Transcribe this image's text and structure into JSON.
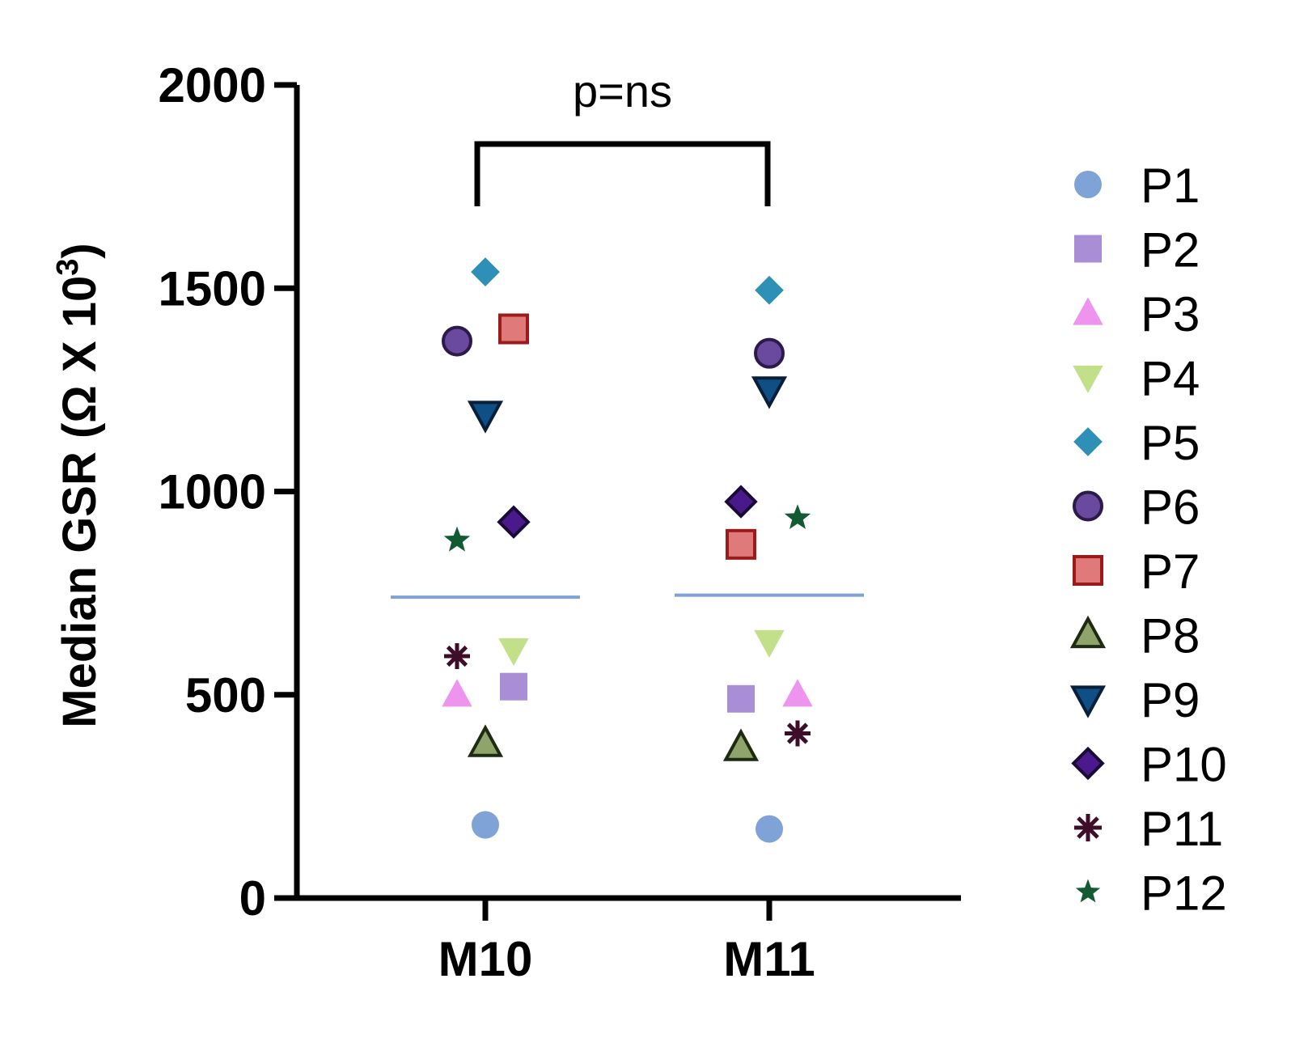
{
  "chart_data": {
    "type": "scatter",
    "ylabel": "Median GSR (Ω X 10",
    "ylabel_superscript": "3",
    "ylabel_close": ")",
    "ylim": [
      0,
      2000
    ],
    "yticks": [
      "0",
      "500",
      "1000",
      "1500",
      "2000"
    ],
    "categories": [
      "M10",
      "M11"
    ],
    "significance": "p=ns",
    "median_line_color": "#7fa3d6",
    "medians": [
      740,
      745
    ],
    "legend_position": "right",
    "series": [
      {
        "name": "P1",
        "marker": "circle",
        "color": "#7fa3d6",
        "stroke": "none",
        "values": [
          180,
          170
        ]
      },
      {
        "name": "P2",
        "marker": "square",
        "color": "#a98ed6",
        "stroke": "none",
        "values": [
          520,
          490
        ]
      },
      {
        "name": "P3",
        "marker": "triangle-up",
        "color": "#ee93ee",
        "stroke": "none",
        "values": [
          500,
          500
        ]
      },
      {
        "name": "P4",
        "marker": "triangle-down",
        "color": "#c2e08a",
        "stroke": "none",
        "values": [
          610,
          630
        ]
      },
      {
        "name": "P5",
        "marker": "diamond",
        "color": "#2e8fb7",
        "stroke": "none",
        "values": [
          1540,
          1495
        ]
      },
      {
        "name": "P6",
        "marker": "circle",
        "color": "#6a4a9e",
        "stroke": "#2c1a4a",
        "values": [
          1370,
          1340
        ]
      },
      {
        "name": "P7",
        "marker": "square",
        "color": "#e07a7a",
        "stroke": "#9b1b1b",
        "values": [
          1400,
          870
        ]
      },
      {
        "name": "P8",
        "marker": "triangle-up",
        "color": "#8fa46a",
        "stroke": "#1f2a12",
        "values": [
          380,
          370
        ]
      },
      {
        "name": "P9",
        "marker": "triangle-down",
        "color": "#0e4f86",
        "stroke": "#081f3a",
        "values": [
          1190,
          1250
        ]
      },
      {
        "name": "P10",
        "marker": "diamond",
        "color": "#4a1a8c",
        "stroke": "#1a0a36",
        "values": [
          925,
          975
        ]
      },
      {
        "name": "P11",
        "marker": "asterisk",
        "color": "#3d0d2a",
        "stroke": "#3d0d2a",
        "values": [
          595,
          405
        ]
      },
      {
        "name": "P12",
        "marker": "star",
        "color": "#115a32",
        "stroke": "none",
        "values": [
          880,
          935
        ]
      }
    ],
    "jitter": {
      "P1": [
        0,
        0
      ],
      "P2": [
        1,
        -1
      ],
      "P3": [
        -1,
        1
      ],
      "P4": [
        1,
        0
      ],
      "P5": [
        0,
        0
      ],
      "P6": [
        -1,
        0
      ],
      "P7": [
        1,
        -1
      ],
      "P8": [
        0,
        -1
      ],
      "P9": [
        0,
        0
      ],
      "P10": [
        1,
        -1
      ],
      "P11": [
        -1,
        1
      ],
      "P12": [
        -1,
        1
      ]
    }
  }
}
